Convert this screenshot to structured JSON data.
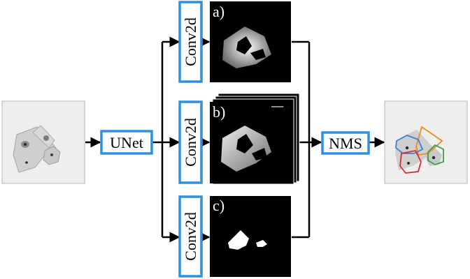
{
  "blocks": {
    "unet": "UNet",
    "conv_a": "Conv2d",
    "conv_b": "Conv2d",
    "conv_c": "Conv2d",
    "nms": "NMS"
  },
  "panels": {
    "a": "a)",
    "b": "b)",
    "c": "c)"
  },
  "colors": {
    "block_border": "#2f8fe0",
    "connector": "#000000",
    "contour_blue": "#3b7fd6",
    "contour_orange": "#f08a1c",
    "contour_green": "#3aa04a",
    "contour_red": "#d62c2c"
  }
}
